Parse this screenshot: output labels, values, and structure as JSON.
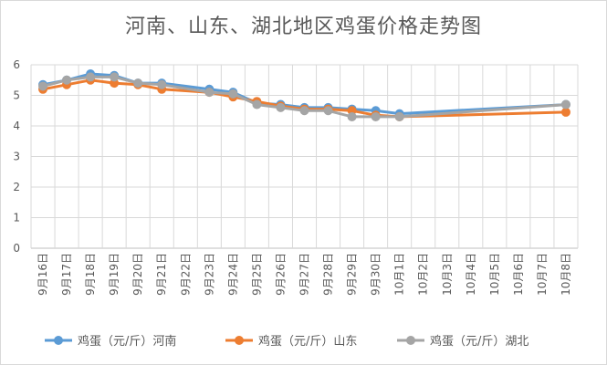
{
  "chart_data": {
    "type": "line",
    "title": "河南、山东、湖北地区鸡蛋价格走势图",
    "xlabel": "",
    "ylabel": "",
    "ylim": [
      0,
      6
    ],
    "yticks": [
      0,
      1,
      2,
      3,
      4,
      5,
      6
    ],
    "grid": "horizontal",
    "legend_position": "bottom",
    "categories": [
      "9月16日",
      "9月17日",
      "9月18日",
      "9月19日",
      "9月20日",
      "9月21日",
      "9月22日",
      "9月23日",
      "9月24日",
      "9月25日",
      "9月26日",
      "9月27日",
      "9月28日",
      "9月29日",
      "9月30日",
      "10月1日",
      "10月2日",
      "10月3日",
      "10月4日",
      "10月5日",
      "10月6日",
      "10月7日",
      "10月8日"
    ],
    "series": [
      {
        "name": "鸡蛋（元/斤）河南",
        "color": "#5b9bd5",
        "values": [
          5.35,
          5.5,
          5.7,
          5.65,
          5.4,
          5.4,
          null,
          5.2,
          5.1,
          4.75,
          4.7,
          4.6,
          4.6,
          4.55,
          4.5,
          4.4,
          null,
          null,
          null,
          null,
          null,
          null,
          4.7
        ]
      },
      {
        "name": "鸡蛋（元/斤）山东",
        "color": "#ed7d31",
        "values": [
          5.2,
          5.35,
          5.5,
          5.4,
          5.35,
          5.2,
          null,
          5.1,
          4.95,
          4.8,
          4.65,
          4.55,
          4.55,
          4.5,
          4.35,
          4.3,
          null,
          null,
          null,
          null,
          null,
          null,
          4.45
        ]
      },
      {
        "name": "鸡蛋（元/斤）湖北",
        "color": "#a5a5a5",
        "values": [
          5.3,
          5.5,
          5.6,
          5.6,
          5.4,
          5.35,
          null,
          5.1,
          5.05,
          4.7,
          4.6,
          4.5,
          4.5,
          4.3,
          4.3,
          4.3,
          null,
          null,
          null,
          null,
          null,
          null,
          4.7
        ]
      }
    ]
  }
}
